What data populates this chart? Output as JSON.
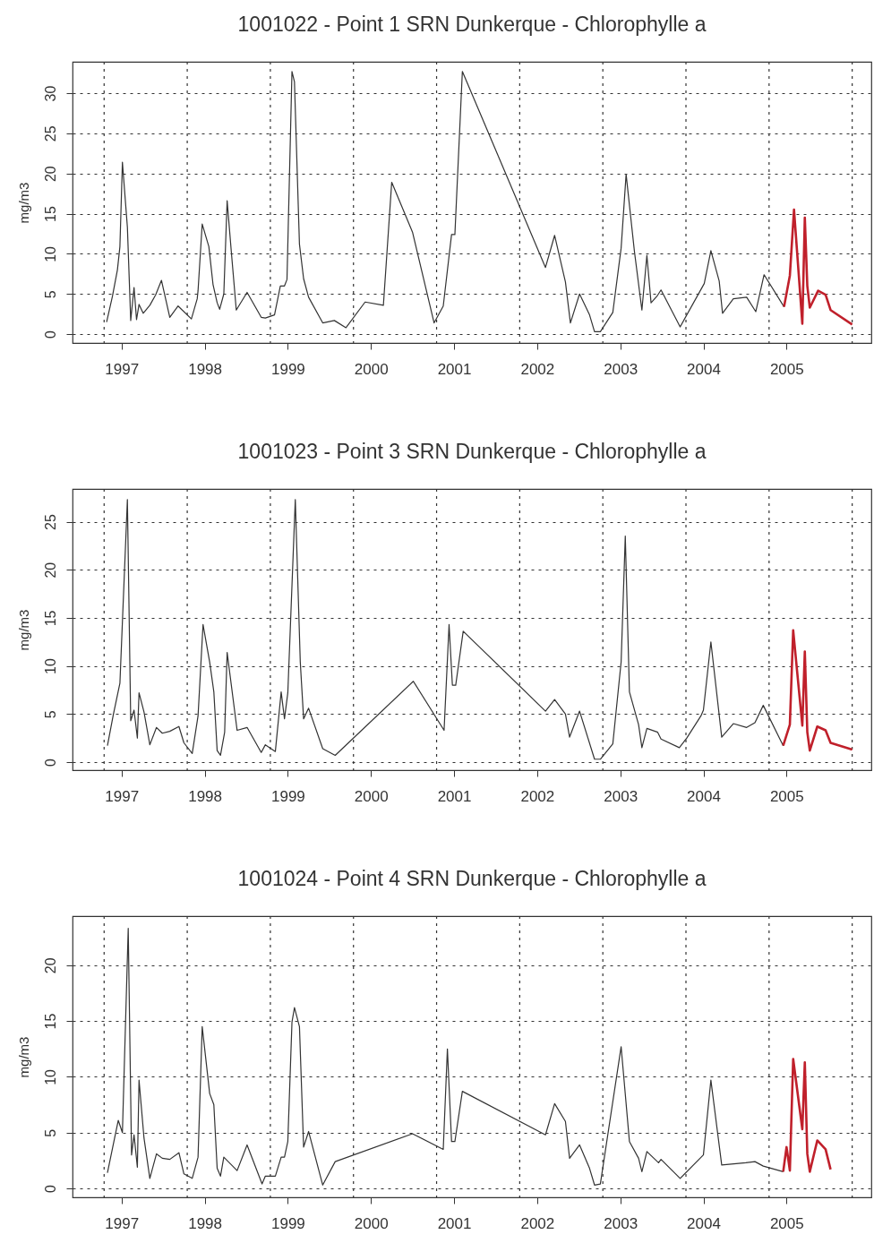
{
  "chart_data": [
    {
      "type": "line",
      "title": "1001022 - Point 1 SRN Dunkerque - Chlorophylle a",
      "ylabel": "mg/m3",
      "xlim": [
        1996.41,
        2006.02
      ],
      "ylim": [
        -1.1,
        33.9
      ],
      "yticks": [
        0,
        5,
        10,
        15,
        20,
        25,
        30
      ],
      "xticks": [
        {
          "value": 1996.79,
          "label": null
        },
        1997,
        {
          "value": 1997.79,
          "label": null
        },
        1998,
        {
          "value": 1998.79,
          "label": null
        },
        1999,
        {
          "value": 1999.79,
          "label": null
        },
        2000,
        {
          "value": 2000.79,
          "label": null
        },
        2001,
        {
          "value": 2001.79,
          "label": null
        },
        2002,
        {
          "value": 2002.79,
          "label": null
        },
        2003,
        {
          "value": 2003.79,
          "label": null
        },
        2004,
        {
          "value": 2004.79,
          "label": null
        },
        2005,
        {
          "value": 2005.79,
          "label": null
        }
      ],
      "grid": true,
      "legend": false,
      "marker": "none",
      "line_style": "solid",
      "series": [
        {
          "color": "#333333",
          "x": [
            1996.82,
            1996.89,
            1996.95,
            1996.98,
            1997.01,
            1997.07,
            1997.11,
            1997.15,
            1997.18,
            1997.21,
            1997.26,
            1997.34,
            1997.41,
            1997.48,
            1997.58,
            1997.68,
            1997.84,
            1997.91,
            1997.92,
            1997.97,
            1998.05,
            1998.1,
            1998.15,
            1998.18,
            1998.23,
            1998.27,
            1998.32,
            1998.38,
            1998.51,
            1998.68,
            1998.73,
            1998.84,
            1998.91,
            1998.96,
            1998.99,
            1999.05,
            1999.08,
            1999.14,
            1999.19,
            1999.25,
            1999.42,
            1999.56,
            1999.7,
            1999.93,
            2000.15,
            2000.25,
            2000.5,
            2000.76,
            2000.87,
            2000.97,
            2001.01,
            2001.1,
            2002.1,
            2002.21,
            2002.34,
            2002.4,
            2002.51,
            2002.63,
            2002.69,
            2002.76,
            2002.91,
            2003.01,
            2003.07,
            2003.17,
            2003.26,
            2003.32,
            2003.37,
            2003.44,
            2003.49,
            2003.72,
            2004.01,
            2004.09,
            2004.19,
            2004.23,
            2004.36,
            2004.52,
            2004.63,
            2004.73,
            2004.97
          ],
          "values": [
            1.5,
            4.7,
            8.0,
            10.9,
            21.4,
            13.3,
            1.7,
            5.8,
            1.8,
            3.7,
            2.6,
            3.6,
            4.9,
            6.7,
            2.1,
            3.5,
            1.9,
            4.4,
            5.4,
            13.7,
            10.9,
            6.2,
            3.9,
            3.1,
            5.0,
            16.6,
            10.3,
            3.0,
            5.2,
            2.1,
            2.0,
            2.4,
            6.0,
            6.0,
            6.8,
            32.7,
            31.4,
            11.2,
            6.9,
            4.6,
            1.4,
            1.7,
            0.8,
            4.0,
            3.6,
            18.9,
            12.7,
            1.4,
            3.5,
            12.4,
            12.4,
            32.7,
            8.3,
            12.3,
            6.5,
            1.4,
            5.0,
            2.4,
            0.3,
            0.3,
            2.7,
            10.7,
            19.9,
            10.3,
            3.0,
            9.8,
            3.9,
            4.7,
            5.5,
            0.9,
            6.3,
            10.4,
            6.6,
            2.6,
            4.4,
            4.6,
            2.8,
            7.4,
            3.4
          ]
        },
        {
          "color": "#c0202b",
          "x": [
            2004.97,
            2005.04,
            2005.09,
            2005.19,
            2005.22,
            2005.25,
            2005.28,
            2005.38,
            2005.47,
            2005.53,
            2005.79
          ],
          "values": [
            3.4,
            7.3,
            15.5,
            1.3,
            14.5,
            6.0,
            3.3,
            5.4,
            4.9,
            3.0,
            1.2
          ]
        }
      ]
    },
    {
      "type": "line",
      "title": "1001023 - Point 3 SRN Dunkerque - Chlorophylle a",
      "ylabel": "mg/m3",
      "xlim": [
        1996.41,
        2006.02
      ],
      "ylim": [
        -0.84,
        28.4
      ],
      "yticks": [
        0,
        5,
        10,
        15,
        20,
        25
      ],
      "xticks": [
        {
          "value": 1996.79,
          "label": null
        },
        1997,
        {
          "value": 1997.79,
          "label": null
        },
        1998,
        {
          "value": 1998.79,
          "label": null
        },
        1999,
        {
          "value": 1999.79,
          "label": null
        },
        2000,
        {
          "value": 2000.79,
          "label": null
        },
        2001,
        {
          "value": 2001.79,
          "label": null
        },
        2002,
        {
          "value": 2002.79,
          "label": null
        },
        2003,
        {
          "value": 2003.79,
          "label": null
        },
        2004,
        {
          "value": 2004.79,
          "label": null
        },
        2005,
        {
          "value": 2005.79,
          "label": null
        }
      ],
      "grid": true,
      "legend": false,
      "marker": "none",
      "line_style": "solid",
      "series": [
        {
          "color": "#333333",
          "x": [
            1996.83,
            1996.9,
            1996.98,
            1997.07,
            1997.11,
            1997.15,
            1997.19,
            1997.21,
            1997.27,
            1997.34,
            1997.42,
            1997.49,
            1997.58,
            1997.69,
            1997.75,
            1997.85,
            1997.92,
            1997.98,
            1998.06,
            1998.11,
            1998.15,
            1998.19,
            1998.24,
            1998.27,
            1998.39,
            1998.51,
            1998.68,
            1998.73,
            1998.85,
            1998.92,
            1998.96,
            1999.0,
            1999.09,
            1999.15,
            1999.19,
            1999.25,
            1999.42,
            1999.57,
            2000.51,
            2000.88,
            2000.94,
            2000.98,
            2001.02,
            2001.11,
            2002.1,
            2002.21,
            2002.34,
            2002.39,
            2002.51,
            2002.69,
            2002.76,
            2002.91,
            2003.01,
            2003.06,
            2003.11,
            2003.22,
            2003.26,
            2003.32,
            2003.45,
            2003.49,
            2003.71,
            2003.8,
            2003.97,
            2004.0,
            2004.09,
            2004.22,
            2004.36,
            2004.52,
            2004.62,
            2004.72,
            2004.96
          ],
          "values": [
            1.7,
            4.9,
            8.2,
            27.3,
            4.3,
            5.4,
            2.5,
            7.2,
            5.2,
            1.8,
            3.6,
            3.0,
            3.2,
            3.7,
            2.0,
            0.9,
            4.8,
            14.3,
            10.4,
            7.3,
            1.2,
            0.7,
            3.1,
            11.4,
            3.3,
            3.6,
            1.0,
            1.8,
            1.1,
            7.3,
            4.5,
            7.2,
            27.3,
            10.4,
            4.5,
            5.6,
            1.4,
            0.7,
            8.4,
            3.3,
            14.3,
            8.0,
            8.0,
            13.6,
            5.3,
            6.5,
            5.0,
            2.6,
            5.3,
            0.3,
            0.3,
            1.9,
            10.4,
            23.5,
            7.3,
            3.9,
            1.5,
            3.5,
            3.1,
            2.4,
            1.5,
            2.5,
            4.8,
            5.4,
            12.5,
            2.6,
            4.0,
            3.6,
            4.1,
            5.9,
            1.7
          ]
        },
        {
          "color": "#c0202b",
          "x": [
            2004.96,
            2005.04,
            2005.08,
            2005.19,
            2005.22,
            2005.25,
            2005.28,
            2005.37,
            2005.47,
            2005.53,
            2005.79
          ],
          "values": [
            1.7,
            3.9,
            13.7,
            3.8,
            11.5,
            3.1,
            1.2,
            3.7,
            3.3,
            2.0,
            1.3
          ]
        }
      ]
    },
    {
      "type": "line",
      "title": "1001024 - Point 4 SRN Dunkerque - Chlorophylle a",
      "ylabel": "mg/m3",
      "xlim": [
        1996.41,
        2006.02
      ],
      "ylim": [
        -0.8,
        24.4
      ],
      "yticks": [
        0,
        5,
        10,
        15,
        20
      ],
      "xticks": [
        {
          "value": 1996.79,
          "label": null
        },
        1997,
        {
          "value": 1997.79,
          "label": null
        },
        1998,
        {
          "value": 1998.79,
          "label": null
        },
        1999,
        {
          "value": 1999.79,
          "label": null
        },
        2000,
        {
          "value": 2000.79,
          "label": null
        },
        2001,
        {
          "value": 2001.79,
          "label": null
        },
        2002,
        {
          "value": 2002.79,
          "label": null
        },
        2003,
        {
          "value": 2003.79,
          "label": null
        },
        2004,
        {
          "value": 2004.79,
          "label": null
        },
        2005,
        {
          "value": 2005.79,
          "label": null
        }
      ],
      "grid": true,
      "legend": false,
      "marker": "none",
      "line_style": "solid",
      "series": [
        {
          "color": "#333333",
          "x": [
            1996.83,
            1996.96,
            1997.01,
            1997.08,
            1997.12,
            1997.15,
            1997.19,
            1997.21,
            1997.27,
            1997.34,
            1997.42,
            1997.49,
            1997.58,
            1997.69,
            1997.75,
            1997.85,
            1997.92,
            1997.97,
            1998.06,
            1998.11,
            1998.15,
            1998.19,
            1998.23,
            1998.39,
            1998.51,
            1998.69,
            1998.73,
            1998.85,
            1998.92,
            1998.96,
            1999.0,
            1999.05,
            1999.08,
            1999.14,
            1999.19,
            1999.25,
            1999.42,
            1999.57,
            2000.5,
            2000.87,
            2000.92,
            2000.97,
            2001.01,
            2001.1,
            2002.1,
            2002.21,
            2002.34,
            2002.39,
            2002.51,
            2002.63,
            2002.69,
            2002.76,
            2003.01,
            2003.11,
            2003.22,
            2003.26,
            2003.32,
            2003.46,
            2003.49,
            2003.72,
            2004.0,
            2004.09,
            2004.22,
            2004.51,
            2004.62,
            2004.72,
            2004.96
          ],
          "values": [
            1.4,
            6.1,
            5.0,
            23.3,
            3.0,
            4.8,
            1.9,
            9.7,
            4.5,
            0.9,
            3.1,
            2.7,
            2.6,
            3.2,
            1.3,
            0.9,
            2.8,
            14.5,
            8.5,
            7.5,
            1.8,
            1.1,
            2.8,
            1.6,
            3.9,
            0.4,
            1.1,
            1.1,
            2.8,
            2.8,
            4.2,
            14.9,
            16.2,
            14.5,
            3.7,
            5.1,
            0.3,
            2.4,
            4.9,
            3.5,
            12.5,
            4.2,
            4.2,
            8.7,
            4.8,
            7.6,
            6.0,
            2.7,
            3.9,
            1.8,
            0.3,
            0.4,
            12.7,
            4.2,
            2.7,
            1.5,
            3.3,
            2.3,
            2.6,
            0.9,
            3.0,
            9.7,
            2.1,
            2.3,
            2.4,
            2.0,
            1.5
          ]
        },
        {
          "color": "#c0202b",
          "x": [
            2004.96,
            2005.0,
            2005.04,
            2005.08,
            2005.19,
            2005.22,
            2005.25,
            2005.28,
            2005.37,
            2005.47,
            2005.53
          ],
          "values": [
            1.5,
            3.7,
            1.6,
            11.6,
            5.3,
            11.3,
            3.1,
            1.5,
            4.3,
            3.5,
            1.7
          ]
        }
      ]
    }
  ]
}
